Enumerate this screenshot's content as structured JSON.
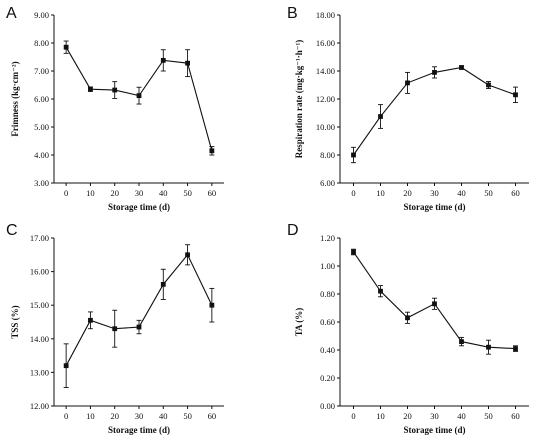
{
  "figure": {
    "background": "#ffffff",
    "ink": "#111111"
  },
  "chart_data": [
    {
      "panel": "A",
      "type": "line",
      "x": [
        0,
        10,
        20,
        30,
        40,
        50,
        60
      ],
      "values": [
        7.85,
        6.35,
        6.32,
        6.12,
        7.38,
        7.28,
        4.15
      ],
      "errors": [
        0.22,
        0.08,
        0.3,
        0.3,
        0.38,
        0.48,
        0.15
      ],
      "xlabel": "Storage time (d)",
      "ylabel": "Frimness (kg·cm⁻²)",
      "yticks": [
        "3.00",
        "4.00",
        "5.00",
        "6.00",
        "7.00",
        "8.00",
        "9.00"
      ],
      "xticks": [
        "0",
        "10",
        "20",
        "30",
        "40",
        "50",
        "60"
      ],
      "xlim": [
        -5,
        65
      ],
      "ylim": [
        3,
        9
      ],
      "grid": false
    },
    {
      "panel": "B",
      "type": "line",
      "x": [
        0,
        10,
        20,
        30,
        40,
        50,
        60
      ],
      "values": [
        8.0,
        10.75,
        13.15,
        13.9,
        14.25,
        13.0,
        12.3
      ],
      "errors": [
        0.55,
        0.85,
        0.75,
        0.4,
        0.12,
        0.25,
        0.55
      ],
      "xlabel": "Storage time (d)",
      "ylabel": "Respiration rate (mg·kg⁻¹·h⁻¹)",
      "yticks": [
        "6.00",
        "8.00",
        "10.00",
        "12.00",
        "14.00",
        "16.00",
        "18.00"
      ],
      "xticks": [
        "0",
        "10",
        "20",
        "30",
        "40",
        "50",
        "60"
      ],
      "xlim": [
        -5,
        65
      ],
      "ylim": [
        6,
        18
      ],
      "grid": false
    },
    {
      "panel": "C",
      "type": "line",
      "x": [
        0,
        10,
        20,
        30,
        40,
        50,
        60
      ],
      "values": [
        13.2,
        14.55,
        14.3,
        14.35,
        15.62,
        16.5,
        15.0
      ],
      "errors": [
        0.65,
        0.25,
        0.55,
        0.2,
        0.45,
        0.3,
        0.5
      ],
      "xlabel": "Storage time (d)",
      "ylabel": "TSS (%)",
      "yticks": [
        "12.00",
        "13.00",
        "14.00",
        "15.00",
        "16.00",
        "17.00"
      ],
      "xticks": [
        "0",
        "10",
        "20",
        "30",
        "40",
        "50",
        "60"
      ],
      "xlim": [
        -5,
        65
      ],
      "ylim": [
        12,
        17
      ],
      "grid": false
    },
    {
      "panel": "D",
      "type": "line",
      "x": [
        0,
        10,
        20,
        30,
        40,
        50,
        60
      ],
      "values": [
        1.1,
        0.82,
        0.63,
        0.73,
        0.46,
        0.42,
        0.41
      ],
      "errors": [
        0.02,
        0.04,
        0.04,
        0.04,
        0.03,
        0.05,
        0.02
      ],
      "xlabel": "Storage time (d)",
      "ylabel": "TA (%)",
      "yticks": [
        "0.00",
        "0.20",
        "0.40",
        "0.60",
        "0.80",
        "1.00",
        "1.20"
      ],
      "xticks": [
        "0",
        "10",
        "20",
        "30",
        "40",
        "50",
        "60"
      ],
      "xlim": [
        -5,
        65
      ],
      "ylim": [
        0,
        1.2
      ],
      "grid": false
    }
  ]
}
